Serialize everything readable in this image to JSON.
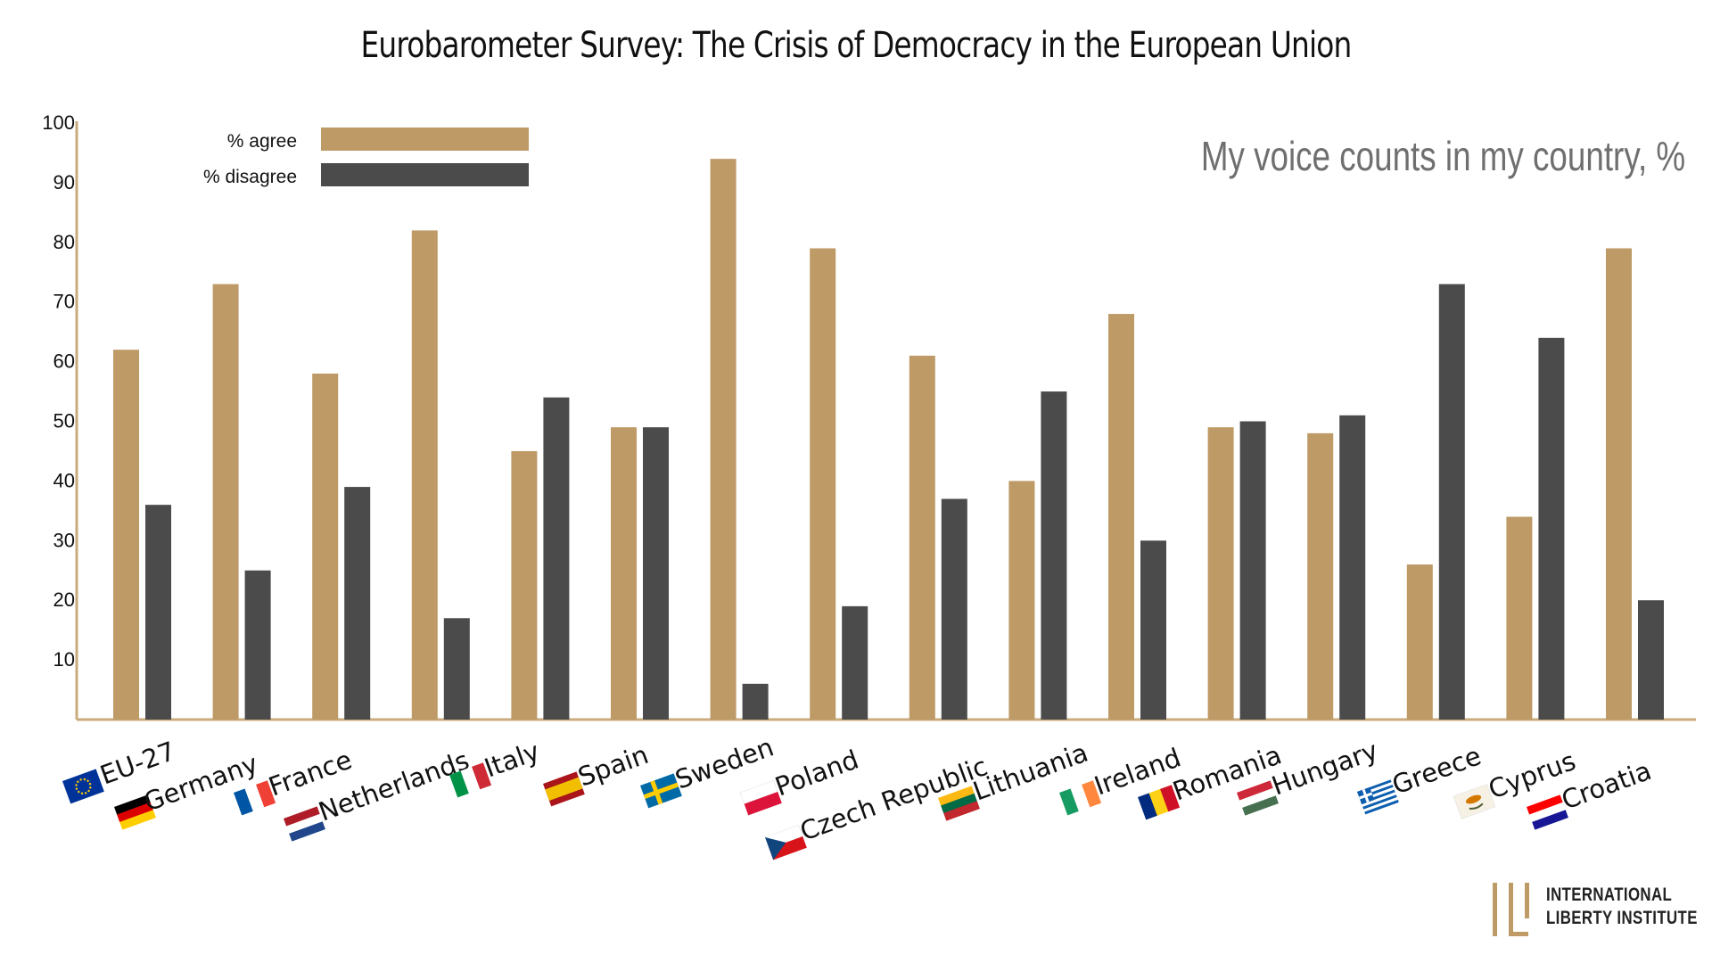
{
  "colors": {
    "agree": "#bd9a66",
    "disagree": "#4b4b4b",
    "axis": "#c9ab7e",
    "subtitle": "#6f6f6f"
  },
  "logo": {
    "line1": "INTERNATIONAL",
    "line2": "LIBERTY INSTITUTE"
  },
  "chart_data": {
    "type": "bar",
    "title": "Eurobarometer Survey: The Crisis of Democracy in the European Union",
    "subtitle": "My voice counts in my country, %",
    "xlabel": "",
    "ylabel": "",
    "ylim": [
      0,
      100
    ],
    "yticks": [
      10,
      20,
      30,
      40,
      50,
      60,
      70,
      80,
      90,
      100
    ],
    "grid": false,
    "legend_position": "top-left",
    "categories": [
      "EU-27",
      "Germany",
      "France",
      "Netherlands",
      "Italy",
      "Spain",
      "Sweden",
      "Poland",
      "Czech Republic",
      "Lithuania",
      "Ireland",
      "Romania",
      "Hungary",
      "Greece",
      "Cyprus",
      "Croatia"
    ],
    "category_flag_icons": [
      "eu-flag-icon",
      "germany-flag-icon",
      "france-flag-icon",
      "netherlands-flag-icon",
      "italy-flag-icon",
      "spain-flag-icon",
      "sweden-flag-icon",
      "poland-flag-icon",
      "czech-flag-icon",
      "lithuania-flag-icon",
      "ireland-flag-icon",
      "romania-flag-icon",
      "hungary-flag-icon",
      "greece-flag-icon",
      "cyprus-flag-icon",
      "croatia-flag-icon"
    ],
    "series": [
      {
        "name": "% agree",
        "values": [
          62,
          73,
          58,
          82,
          45,
          49,
          94,
          79,
          61,
          40,
          68,
          49,
          48,
          26,
          34,
          79
        ]
      },
      {
        "name": "% disagree",
        "values": [
          36,
          25,
          39,
          17,
          54,
          49,
          6,
          19,
          37,
          55,
          30,
          50,
          51,
          73,
          64,
          20
        ]
      }
    ]
  }
}
